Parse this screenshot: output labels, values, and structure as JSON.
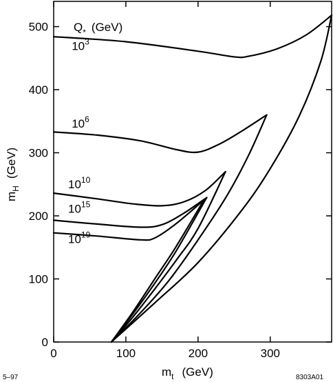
{
  "chart_data": {
    "type": "line",
    "xlabel": {
      "main": "m",
      "sub": "t",
      "unit": "(GeV)"
    },
    "ylabel": {
      "main": "m",
      "sub": "H",
      "unit": "(GeV)"
    },
    "xlim": [
      0,
      385
    ],
    "ylim": [
      0,
      540
    ],
    "xticks": [
      0,
      100,
      200,
      300
    ],
    "yticks": [
      0,
      100,
      200,
      300,
      400,
      500
    ],
    "grid": false,
    "legend_title": {
      "main": "Q",
      "sub": "*",
      "unit": "(GeV)"
    },
    "series": [
      {
        "label_base": "10",
        "label_exp": "3",
        "label_at": [
          25,
          463
        ],
        "upper": [
          [
            0,
            484
          ],
          [
            100,
            476
          ],
          [
            200,
            461
          ],
          [
            250,
            452
          ],
          [
            270,
            453
          ],
          [
            310,
            465
          ],
          [
            350,
            487
          ],
          [
            385,
            518
          ]
        ],
        "lower": [
          [
            80,
            0
          ],
          [
            140,
            62
          ],
          [
            200,
            126
          ],
          [
            260,
            208
          ],
          [
            300,
            275
          ],
          [
            340,
            358
          ],
          [
            370,
            445
          ],
          [
            385,
            518
          ]
        ]
      },
      {
        "label_base": "10",
        "label_exp": "6",
        "label_at": [
          25,
          340
        ],
        "upper": [
          [
            0,
            333
          ],
          [
            60,
            328
          ],
          [
            120,
            319
          ],
          [
            170,
            305
          ],
          [
            200,
            301
          ],
          [
            230,
            314
          ],
          [
            260,
            334
          ],
          [
            295,
            360
          ]
        ],
        "lower": [
          [
            80,
            0
          ],
          [
            120,
            46
          ],
          [
            160,
            98
          ],
          [
            200,
            162
          ],
          [
            240,
            232
          ],
          [
            270,
            296
          ],
          [
            295,
            360
          ]
        ]
      },
      {
        "label_base": "10",
        "label_exp": "10",
        "label_at": [
          20,
          244
        ],
        "upper": [
          [
            0,
            236
          ],
          [
            60,
            227
          ],
          [
            110,
            219
          ],
          [
            150,
            216
          ],
          [
            180,
            222
          ],
          [
            210,
            240
          ],
          [
            238,
            270
          ]
        ],
        "lower": [
          [
            80,
            0
          ],
          [
            110,
            40
          ],
          [
            140,
            84
          ],
          [
            170,
            130
          ],
          [
            200,
            180
          ],
          [
            238,
            270
          ]
        ]
      },
      {
        "label_base": "10",
        "label_exp": "15",
        "label_at": [
          20,
          205
        ],
        "upper": [
          [
            0,
            193
          ],
          [
            60,
            187
          ],
          [
            120,
            182
          ],
          [
            150,
            186
          ],
          [
            180,
            204
          ],
          [
            212,
            229
          ]
        ],
        "lower": [
          [
            80,
            0
          ],
          [
            110,
            45
          ],
          [
            140,
            93
          ],
          [
            170,
            145
          ],
          [
            212,
            229
          ]
        ]
      },
      {
        "label_base": "10",
        "label_exp": "19",
        "label_at": [
          20,
          157
        ],
        "upper": [
          [
            0,
            173
          ],
          [
            60,
            168
          ],
          [
            120,
            162
          ],
          [
            140,
            165
          ],
          [
            170,
            188
          ],
          [
            208,
            225
          ]
        ],
        "lower": [
          [
            80,
            0
          ],
          [
            110,
            48
          ],
          [
            140,
            100
          ],
          [
            170,
            152
          ],
          [
            208,
            225
          ]
        ]
      }
    ]
  },
  "footnotes": {
    "left": "5–97",
    "right": "8303A01"
  }
}
